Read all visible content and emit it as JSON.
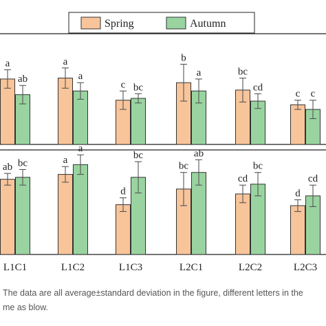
{
  "legend": {
    "items": [
      {
        "name": "Spring",
        "color": "#f8c49a"
      },
      {
        "name": "Autumn",
        "color": "#99d4a0"
      }
    ],
    "placement": "top-center"
  },
  "colors": {
    "spring_fill": "#f8c49a",
    "autumn_fill": "#99d4a0",
    "bar_stroke": "#333333",
    "error_bar": "#555555",
    "axis": "#222222",
    "caption_text": "#555555"
  },
  "caption": {
    "line1": "The data are all average±standard deviation in the figure, different letters in the",
    "line2": "me as blow."
  },
  "chart_data": [
    {
      "type": "bar",
      "panel": "top",
      "categories": [
        "L1C1",
        "L1C2",
        "L1C3",
        "L2C1",
        "L2C2",
        "L2C3"
      ],
      "series": [
        {
          "name": "Spring",
          "values": [
            0.71,
            0.72,
            0.48,
            0.67,
            0.59,
            0.43
          ],
          "errors": [
            0.1,
            0.11,
            0.1,
            0.2,
            0.13,
            0.05
          ],
          "letters": [
            "a",
            "a",
            "c",
            "b",
            "bc",
            "c"
          ]
        },
        {
          "name": "Autumn",
          "values": [
            0.54,
            0.58,
            0.5,
            0.58,
            0.47,
            0.38
          ],
          "errors": [
            0.1,
            0.09,
            0.05,
            0.13,
            0.08,
            0.1
          ],
          "letters": [
            "ab",
            "a",
            "bc",
            "a",
            "cd",
            "c"
          ]
        }
      ],
      "ylim": [
        0,
        1
      ],
      "grid": false
    },
    {
      "type": "bar",
      "panel": "bottom",
      "categories": [
        "L1C1",
        "L1C2",
        "L1C3",
        "L2C1",
        "L2C2",
        "L2C3"
      ],
      "series": [
        {
          "name": "Spring",
          "values": [
            0.77,
            0.82,
            0.51,
            0.67,
            0.62,
            0.5
          ],
          "errors": [
            0.06,
            0.08,
            0.07,
            0.17,
            0.09,
            0.06
          ],
          "letters": [
            "ab",
            "a",
            "d",
            "bc",
            "cd",
            "d"
          ]
        },
        {
          "name": "Autumn",
          "values": [
            0.79,
            0.92,
            0.79,
            0.84,
            0.72,
            0.6
          ],
          "errors": [
            0.08,
            0.1,
            0.16,
            0.13,
            0.12,
            0.11
          ],
          "letters": [
            "bc",
            "a",
            "bc",
            "ab",
            "bc",
            "cd"
          ]
        }
      ],
      "ylim": [
        0,
        1
      ],
      "grid": false
    }
  ]
}
